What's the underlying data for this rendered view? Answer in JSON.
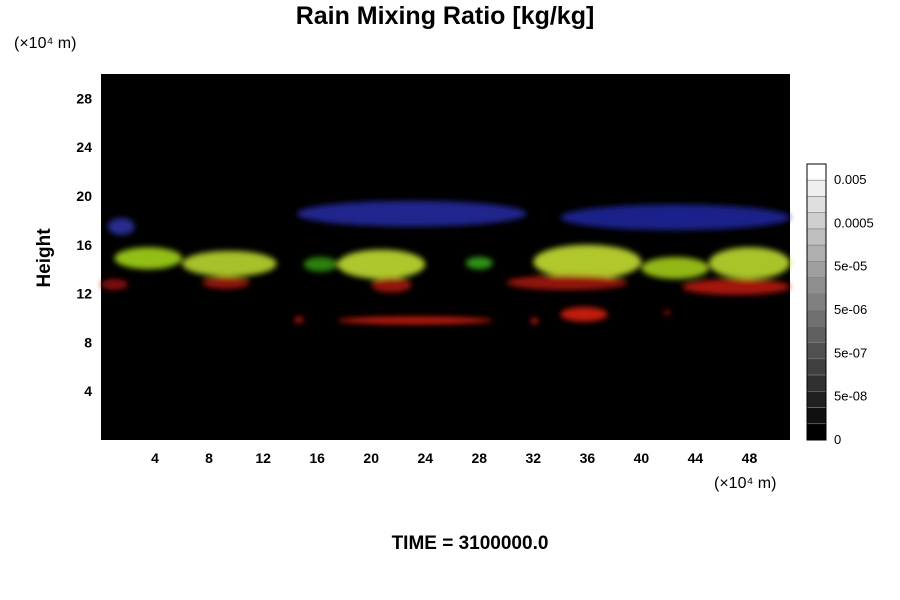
{
  "chart_data": {
    "type": "heatmap",
    "title": "Rain Mixing Ratio [kg/kg]",
    "ylabel": "Height",
    "yunit": "(×10⁴ m)",
    "xunit": "(×10⁴ m)",
    "footer": "TIME = 3100000.0",
    "xlim": [
      0,
      51
    ],
    "ylim": [
      0,
      30
    ],
    "xticks": [
      4,
      8,
      12,
      16,
      20,
      24,
      28,
      32,
      36,
      40,
      44,
      48
    ],
    "yticks": [
      4,
      8,
      12,
      16,
      20,
      24,
      28
    ],
    "colorbar": {
      "labels": [
        "0.005",
        "0.0005",
        "5e-05",
        "5e-06",
        "5e-07",
        "5e-08",
        "0"
      ],
      "levels": 17
    },
    "regions": [
      {
        "color": "#2a2f9a",
        "x": [
          0.5,
          2.5
        ],
        "y": [
          16.8,
          18.2
        ]
      },
      {
        "color": "#22289a",
        "x": [
          14.5,
          31.5
        ],
        "y": [
          17.5,
          19.6
        ]
      },
      {
        "color": "#1f2596",
        "x": [
          34,
          51
        ],
        "y": [
          17.2,
          19.3
        ]
      },
      {
        "color": "#9ecf16",
        "x": [
          1,
          6
        ],
        "y": [
          14,
          15.8
        ]
      },
      {
        "color": "#b4d12a",
        "x": [
          6,
          13
        ],
        "y": [
          13.4,
          15.5
        ]
      },
      {
        "color": "#2f8a12",
        "x": [
          15,
          17.5
        ],
        "y": [
          13.8,
          15
        ]
      },
      {
        "color": "#bdd830",
        "x": [
          17.5,
          24
        ],
        "y": [
          13.2,
          15.6
        ]
      },
      {
        "color": "#35a016",
        "x": [
          27,
          29
        ],
        "y": [
          14,
          15
        ]
      },
      {
        "color": "#c0d832",
        "x": [
          32,
          40
        ],
        "y": [
          13.2,
          16
        ]
      },
      {
        "color": "#9fc81a",
        "x": [
          40,
          45
        ],
        "y": [
          13.2,
          15
        ]
      },
      {
        "color": "#b6d52a",
        "x": [
          45,
          51
        ],
        "y": [
          13.2,
          15.8
        ]
      },
      {
        "color": "#8a1208",
        "x": [
          0,
          2
        ],
        "y": [
          12.3,
          13.2
        ]
      },
      {
        "color": "#a0140a",
        "x": [
          7.5,
          11
        ],
        "y": [
          12.4,
          13.4
        ]
      },
      {
        "color": "#a0140a",
        "x": [
          20,
          23
        ],
        "y": [
          12.1,
          13.3
        ]
      },
      {
        "color": "#a0140a",
        "x": [
          30,
          39
        ],
        "y": [
          12.3,
          13.5
        ]
      },
      {
        "color": "#b3180c",
        "x": [
          43,
          51
        ],
        "y": [
          11.9,
          13.2
        ]
      },
      {
        "color": "#cc1a0e",
        "x": [
          14.3,
          15
        ],
        "y": [
          9.6,
          10.1
        ]
      },
      {
        "color": "#d21c10",
        "x": [
          17.5,
          29
        ],
        "y": [
          9.5,
          10.1
        ]
      },
      {
        "color": "#c8190e",
        "x": [
          31.8,
          32.4
        ],
        "y": [
          9.5,
          10
        ]
      },
      {
        "color": "#d21c10",
        "x": [
          34,
          37.5
        ],
        "y": [
          9.7,
          10.9
        ]
      },
      {
        "color": "#b3180c",
        "x": [
          41.7,
          42.1
        ],
        "y": [
          10.3,
          10.6
        ]
      }
    ]
  }
}
